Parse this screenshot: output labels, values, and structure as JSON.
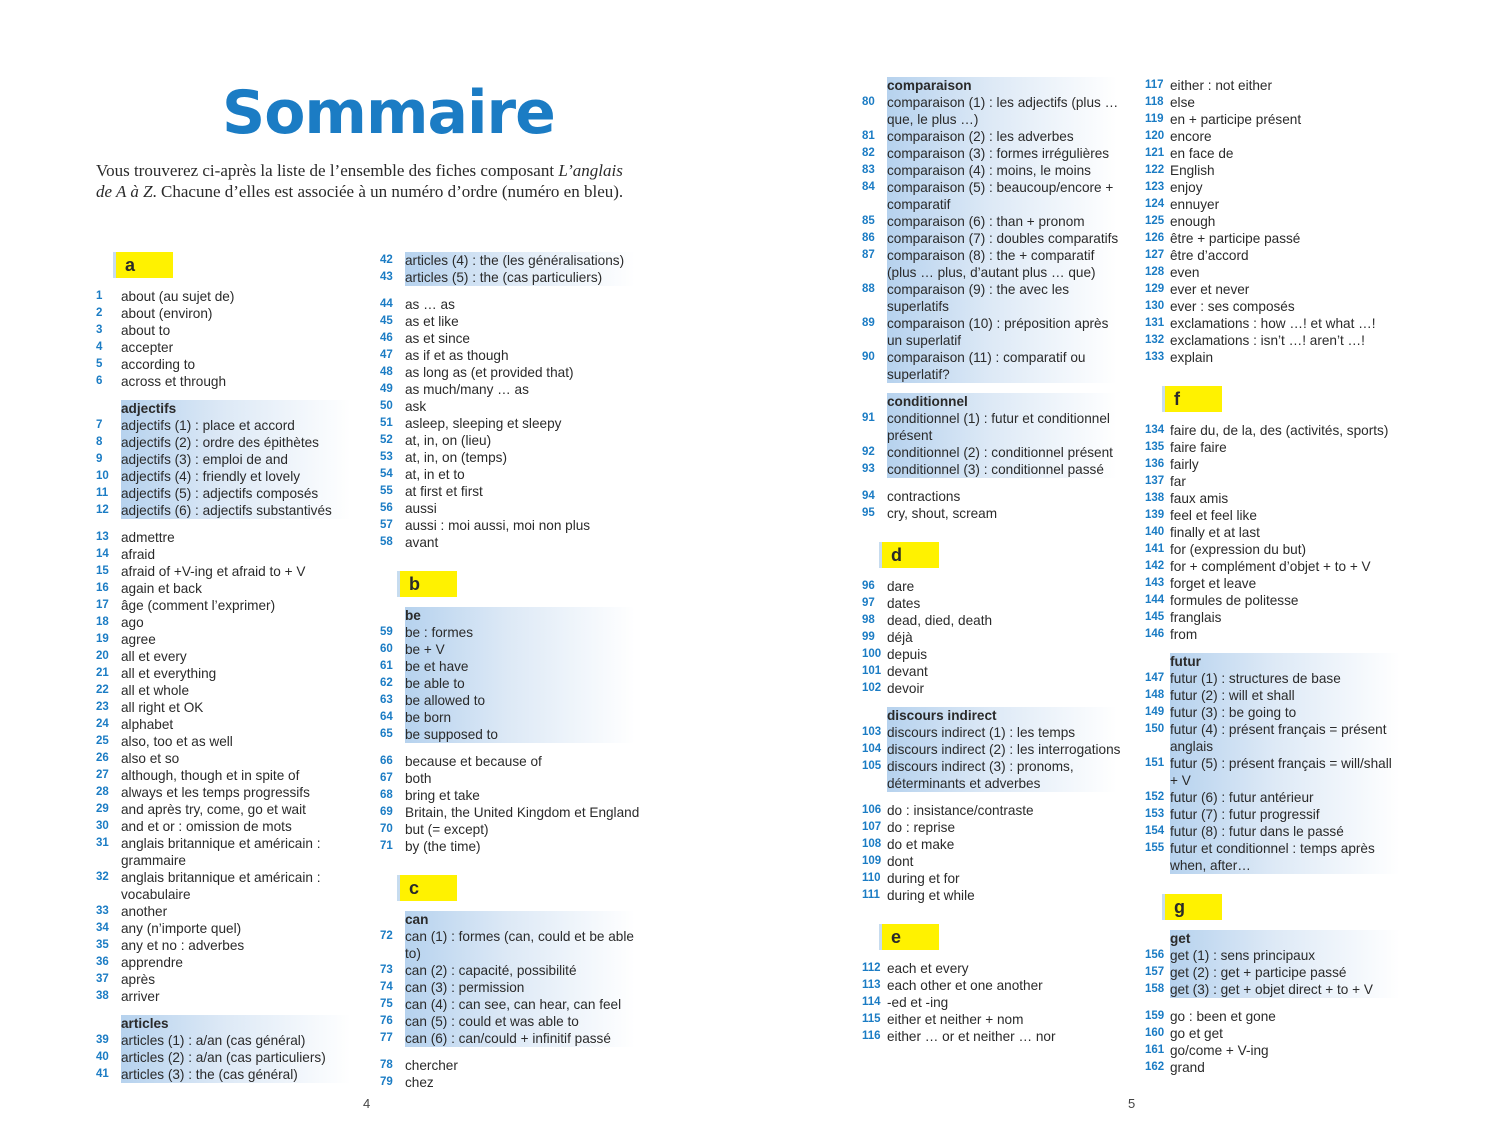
{
  "header": {
    "title": "Sommaire",
    "intro": [
      "Vous trouverez ci-après la liste de l’ensemble des fiches composant ",
      "L’anglais de A à Z",
      ". Chacune d’elles est associée à un numéro d’ordre (numéro en bleu)."
    ]
  },
  "columns": [
    {
      "blocks": [
        {
          "letter": "a"
        },
        {
          "items": [
            [
              1,
              "about (au sujet de)"
            ],
            [
              2,
              "about (environ)"
            ],
            [
              3,
              "about to"
            ],
            [
              4,
              "accepter"
            ],
            [
              5,
              "according to"
            ],
            [
              6,
              "across et through"
            ]
          ]
        },
        {
          "shaded": true,
          "heading": "adjectifs",
          "items": [
            [
              7,
              "adjectifs (1) : place et accord"
            ],
            [
              8,
              "adjectifs (2) : ordre des épithètes"
            ],
            [
              9,
              "adjectifs (3) : emploi de and"
            ],
            [
              10,
              "adjectifs (4) : friendly et lovely"
            ],
            [
              11,
              "adjectifs (5) : adjectifs composés"
            ],
            [
              12,
              "adjectifs (6) : adjectifs substantivés"
            ]
          ]
        },
        {
          "items": [
            [
              13,
              "admettre"
            ],
            [
              14,
              "afraid"
            ],
            [
              15,
              "afraid of +V-ing et afraid to + V"
            ],
            [
              16,
              "again et back"
            ],
            [
              17,
              "âge (comment l’exprimer)"
            ],
            [
              18,
              "ago"
            ],
            [
              19,
              "agree"
            ],
            [
              20,
              "all et every"
            ],
            [
              21,
              "all et everything"
            ],
            [
              22,
              "all et whole"
            ],
            [
              23,
              "all right et OK"
            ],
            [
              24,
              "alphabet"
            ],
            [
              25,
              "also, too et as well"
            ],
            [
              26,
              "also et so"
            ],
            [
              27,
              "although, though et in spite of"
            ],
            [
              28,
              "always et les temps progressifs"
            ],
            [
              29,
              "and après try, come, go et wait"
            ],
            [
              30,
              "and et or : omission de mots"
            ],
            [
              31,
              "anglais britannique et américain : grammaire"
            ],
            [
              32,
              "anglais britannique et américain : vocabulaire"
            ],
            [
              33,
              "another"
            ],
            [
              34,
              "any (n’importe quel)"
            ],
            [
              35,
              "any et no : adverbes"
            ],
            [
              36,
              "apprendre"
            ],
            [
              37,
              "après"
            ],
            [
              38,
              "arriver"
            ]
          ]
        },
        {
          "shaded": true,
          "heading": "articles",
          "items": [
            [
              39,
              "articles (1) : a/an (cas général)"
            ],
            [
              40,
              "articles (2) : a/an (cas particuliers)"
            ],
            [
              41,
              "articles (3) : the (cas général)"
            ]
          ]
        }
      ]
    },
    {
      "blocks": [
        {
          "shaded": true,
          "items": [
            [
              42,
              "articles (4) : the (les généralisations)"
            ],
            [
              43,
              "articles (5) : the (cas particuliers)"
            ]
          ]
        },
        {
          "items": [
            [
              44,
              "as … as"
            ],
            [
              45,
              "as et like"
            ],
            [
              46,
              "as et since"
            ],
            [
              47,
              "as if et as though"
            ],
            [
              48,
              "as long as (et provided that)"
            ],
            [
              49,
              "as much/many … as"
            ],
            [
              50,
              "ask"
            ],
            [
              51,
              "asleep, sleeping et sleepy"
            ],
            [
              52,
              "at, in, on (lieu)"
            ],
            [
              53,
              "at, in, on (temps)"
            ],
            [
              54,
              "at, in et to"
            ],
            [
              55,
              "at first et first"
            ],
            [
              56,
              "aussi"
            ],
            [
              57,
              "aussi : moi aussi, moi non plus"
            ],
            [
              58,
              "avant"
            ]
          ]
        },
        {
          "letter": "b"
        },
        {
          "shaded": true,
          "heading": "be",
          "items": [
            [
              59,
              "be : formes"
            ],
            [
              60,
              "be + V"
            ],
            [
              61,
              "be et have"
            ],
            [
              62,
              "be able to"
            ],
            [
              63,
              "be allowed to"
            ],
            [
              64,
              "be born"
            ],
            [
              65,
              "be supposed to"
            ]
          ]
        },
        {
          "items": [
            [
              66,
              "because et because of"
            ],
            [
              67,
              "both"
            ],
            [
              68,
              "bring et take"
            ],
            [
              69,
              "Britain, the United Kingdom et England"
            ],
            [
              70,
              "but (= except)"
            ],
            [
              71,
              "by (the time)"
            ]
          ]
        },
        {
          "letter": "c"
        },
        {
          "shaded": true,
          "heading": "can",
          "items": [
            [
              72,
              "can (1) : formes (can, could et be able to)"
            ],
            [
              73,
              "can (2) : capacité, possibilité"
            ],
            [
              74,
              "can (3) : permission"
            ],
            [
              75,
              "can (4) : can see, can hear, can feel"
            ],
            [
              76,
              "can (5) : could et was able to"
            ],
            [
              77,
              "can (6) : can/could + infinitif passé"
            ]
          ]
        },
        {
          "items": [
            [
              78,
              "chercher"
            ],
            [
              79,
              "chez"
            ]
          ]
        }
      ]
    },
    {
      "blocks": [
        {
          "shaded": true,
          "heading": "comparaison",
          "items": [
            [
              80,
              "comparaison (1) : les adjectifs (plus … que, le plus …)"
            ],
            [
              81,
              "comparaison (2) : les adverbes"
            ],
            [
              82,
              "comparaison (3) : formes irrégulières"
            ],
            [
              83,
              "comparaison (4) : moins, le moins"
            ],
            [
              84,
              "comparaison (5) : beaucoup/encore + comparatif"
            ],
            [
              85,
              "comparaison (6) : than + pronom"
            ],
            [
              86,
              "comparaison (7) : doubles comparatifs"
            ],
            [
              87,
              "comparaison (8) : the + comparatif (plus … plus, d’autant plus … que)"
            ],
            [
              88,
              "comparaison (9) : the avec les superlatifs"
            ],
            [
              89,
              "comparaison (10) : préposition après un superlatif"
            ],
            [
              90,
              "comparaison (11) : comparatif ou superlatif?"
            ]
          ]
        },
        {
          "shaded": true,
          "heading": "conditionnel",
          "items": [
            [
              91,
              "conditionnel (1) : futur et conditionnel présent"
            ],
            [
              92,
              "conditionnel (2) : conditionnel présent"
            ],
            [
              93,
              "conditionnel (3) : conditionnel passé"
            ]
          ]
        },
        {
          "items": [
            [
              94,
              "contractions"
            ],
            [
              95,
              "cry, shout, scream"
            ]
          ]
        },
        {
          "letter": "d"
        },
        {
          "items": [
            [
              96,
              "dare"
            ],
            [
              97,
              "dates"
            ],
            [
              98,
              "dead, died, death"
            ],
            [
              99,
              "déjà"
            ],
            [
              100,
              "depuis"
            ],
            [
              101,
              "devant"
            ],
            [
              102,
              "devoir"
            ]
          ]
        },
        {
          "shaded": true,
          "heading": "discours indirect",
          "items": [
            [
              103,
              "discours indirect (1) : les temps"
            ],
            [
              104,
              "discours indirect (2) : les interrogations"
            ],
            [
              105,
              "discours indirect (3) : pronoms, déterminants et adverbes"
            ]
          ]
        },
        {
          "items": [
            [
              106,
              "do : insistance/contraste"
            ],
            [
              107,
              "do : reprise"
            ],
            [
              108,
              "do et make"
            ],
            [
              109,
              "dont"
            ],
            [
              110,
              "during et for"
            ],
            [
              111,
              "during et while"
            ]
          ]
        },
        {
          "letter": "e"
        },
        {
          "items": [
            [
              112,
              "each et every"
            ],
            [
              113,
              "each other et one another"
            ],
            [
              114,
              "-ed et -ing"
            ],
            [
              115,
              "either et neither + nom"
            ],
            [
              116,
              "either … or et neither … nor"
            ]
          ]
        }
      ]
    },
    {
      "blocks": [
        {
          "items": [
            [
              117,
              "either : not either"
            ],
            [
              118,
              "else"
            ],
            [
              119,
              "en + participe présent"
            ],
            [
              120,
              "encore"
            ],
            [
              121,
              "en face de"
            ],
            [
              122,
              "English"
            ],
            [
              123,
              "enjoy"
            ],
            [
              124,
              "ennuyer"
            ],
            [
              125,
              "enough"
            ],
            [
              126,
              "être + participe passé"
            ],
            [
              127,
              "être d’accord"
            ],
            [
              128,
              "even"
            ],
            [
              129,
              "ever et never"
            ],
            [
              130,
              "ever : ses composés"
            ],
            [
              131,
              "exclamations : how …! et what …!"
            ],
            [
              132,
              "exclamations : isn’t …! aren’t …!"
            ],
            [
              133,
              "explain"
            ]
          ]
        },
        {
          "letter": "f"
        },
        {
          "items": [
            [
              134,
              "faire du, de la, des (activités, sports)"
            ],
            [
              135,
              "faire faire"
            ],
            [
              136,
              "fairly"
            ],
            [
              137,
              "far"
            ],
            [
              138,
              "faux amis"
            ],
            [
              139,
              "feel et feel like"
            ],
            [
              140,
              "finally et at last"
            ],
            [
              141,
              "for (expression du but)"
            ],
            [
              142,
              "for + complément d’objet + to + V"
            ],
            [
              143,
              "forget et leave"
            ],
            [
              144,
              "formules de politesse"
            ],
            [
              145,
              "franglais"
            ],
            [
              146,
              "from"
            ]
          ]
        },
        {
          "shaded": true,
          "heading": "futur",
          "items": [
            [
              147,
              "futur (1) : structures de base"
            ],
            [
              148,
              "futur (2) : will et shall"
            ],
            [
              149,
              "futur (3) : be going to"
            ],
            [
              150,
              "futur (4) : présent français = présent anglais"
            ],
            [
              151,
              "futur (5) : présent français = will/shall + V"
            ],
            [
              152,
              "futur (6) : futur antérieur"
            ],
            [
              153,
              "futur (7) : futur progressif"
            ],
            [
              154,
              "futur (8) : futur dans le passé"
            ],
            [
              155,
              "futur et conditionnel : temps après when, after…"
            ]
          ]
        },
        {
          "letter": "g"
        },
        {
          "shaded": true,
          "heading": "get",
          "items": [
            [
              156,
              "get (1) : sens principaux"
            ],
            [
              157,
              "get (2) : get + participe passé"
            ],
            [
              158,
              "get (3) : get + objet direct + to + V"
            ]
          ]
        },
        {
          "items": [
            [
              159,
              "go : been et gone"
            ],
            [
              160,
              "go et get"
            ],
            [
              161,
              "go/come + V-ing"
            ],
            [
              162,
              "grand"
            ]
          ]
        }
      ]
    }
  ],
  "page_numbers": [
    "4",
    "5"
  ]
}
